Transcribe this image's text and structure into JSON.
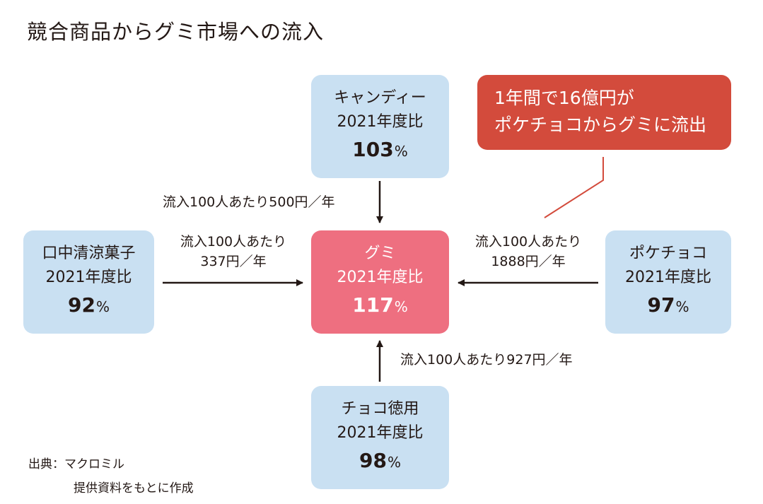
{
  "title": "競合商品からグミ市場への流入",
  "boxes": {
    "candy": {
      "name": "キャンディー",
      "ratio_label": "2021年度比",
      "value": "103",
      "unit": "%"
    },
    "mouth": {
      "name": "口中清涼菓子",
      "ratio_label": "2021年度比",
      "value": "92",
      "unit": "%"
    },
    "gummy": {
      "name": "グミ",
      "ratio_label": "2021年度比",
      "value": "117",
      "unit": "%"
    },
    "pocket": {
      "name": "ポケチョコ",
      "ratio_label": "2021年度比",
      "value": "97",
      "unit": "%"
    },
    "choco": {
      "name": "チョコ徳用",
      "ratio_label": "2021年度比",
      "value": "98",
      "unit": "%"
    }
  },
  "flows": {
    "candy": {
      "line1": "流入100人あたり500円／年"
    },
    "mouth": {
      "line1": "流入100人あたり",
      "line2": "337円／年"
    },
    "pocket": {
      "line1": "流入100人あたり",
      "line2": "1888円／年"
    },
    "choco": {
      "line1": "流入100人あたり927円／年"
    }
  },
  "callout": {
    "line1": "1年間で16億円が",
    "line2": "ポケチョコからグミに流出"
  },
  "source": {
    "line1": "出典：マクロミル",
    "line2": "提供資料をもとに作成"
  },
  "colors": {
    "box_blue": "#c9e0f2",
    "box_center": "#ee6f80",
    "callout": "#d34b3c",
    "text": "#231815"
  }
}
